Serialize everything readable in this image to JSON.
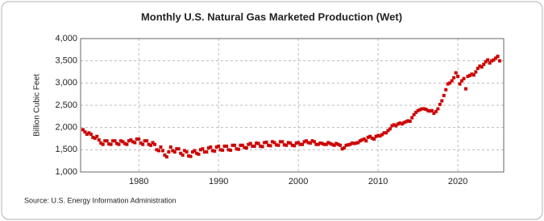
{
  "chart_data": {
    "type": "scatter",
    "title": "Monthly U.S. Natural Gas Marketed Production (Wet)",
    "y_label": "Billion Cubic Feet",
    "source": "Source: U.S. Energy Information Administration",
    "color": "#cc0000",
    "grid": true,
    "xlim": [
      1972.7,
      2025.75
    ],
    "ylim": [
      1000,
      4000
    ],
    "xticks": [
      1980,
      1990,
      2000,
      2010,
      2020
    ],
    "yticks": [
      {
        "value": 1000,
        "label": "1,000"
      },
      {
        "value": 1500,
        "label": "1,500"
      },
      {
        "value": 2000,
        "label": "2,000"
      },
      {
        "value": 2500,
        "label": "2,500"
      },
      {
        "value": 3000,
        "label": "3,000"
      },
      {
        "value": 3500,
        "label": "3,500"
      },
      {
        "value": 4000,
        "label": "4,000"
      }
    ],
    "x": [
      1973,
      1973.25,
      1973.5,
      1973.75,
      1974,
      1974.25,
      1974.5,
      1974.75,
      1975,
      1975.25,
      1975.5,
      1975.75,
      1976,
      1976.25,
      1976.5,
      1976.75,
      1977,
      1977.25,
      1977.5,
      1977.75,
      1978,
      1978.25,
      1978.5,
      1978.75,
      1979,
      1979.25,
      1979.5,
      1979.75,
      1980,
      1980.25,
      1980.5,
      1980.75,
      1981,
      1981.25,
      1981.5,
      1981.75,
      1982,
      1982.25,
      1982.5,
      1982.75,
      1983,
      1983.25,
      1983.5,
      1983.75,
      1984,
      1984.25,
      1984.5,
      1984.75,
      1985,
      1985.25,
      1985.5,
      1985.75,
      1986,
      1986.25,
      1986.5,
      1986.75,
      1987,
      1987.25,
      1987.5,
      1987.75,
      1988,
      1988.25,
      1988.5,
      1988.75,
      1989,
      1989.25,
      1989.5,
      1989.75,
      1990,
      1990.25,
      1990.5,
      1990.75,
      1991,
      1991.25,
      1991.5,
      1991.75,
      1992,
      1992.25,
      1992.5,
      1992.75,
      1993,
      1993.25,
      1993.5,
      1993.75,
      1994,
      1994.25,
      1994.5,
      1994.75,
      1995,
      1995.25,
      1995.5,
      1995.75,
      1996,
      1996.25,
      1996.5,
      1996.75,
      1997,
      1997.25,
      1997.5,
      1997.75,
      1998,
      1998.25,
      1998.5,
      1998.75,
      1999,
      1999.25,
      1999.5,
      1999.75,
      2000,
      2000.25,
      2000.5,
      2000.75,
      2001,
      2001.25,
      2001.5,
      2001.75,
      2002,
      2002.25,
      2002.5,
      2002.75,
      2003,
      2003.25,
      2003.5,
      2003.75,
      2004,
      2004.25,
      2004.5,
      2004.75,
      2005,
      2005.25,
      2005.5,
      2005.75,
      2006,
      2006.25,
      2006.5,
      2006.75,
      2007,
      2007.25,
      2007.5,
      2007.75,
      2008,
      2008.25,
      2008.5,
      2008.75,
      2009,
      2009.25,
      2009.5,
      2009.75,
      2010,
      2010.25,
      2010.5,
      2010.75,
      2011,
      2011.25,
      2011.5,
      2011.75,
      2012,
      2012.25,
      2012.5,
      2012.75,
      2013,
      2013.25,
      2013.5,
      2013.75,
      2014,
      2014.25,
      2014.5,
      2014.75,
      2015,
      2015.25,
      2015.5,
      2015.75,
      2016,
      2016.25,
      2016.5,
      2016.75,
      2017,
      2017.25,
      2017.5,
      2017.75,
      2018,
      2018.25,
      2018.5,
      2018.75,
      2019,
      2019.25,
      2019.5,
      2019.75,
      2020,
      2020.25,
      2020.5,
      2020.75,
      2021,
      2021.25,
      2021.5,
      2021.75,
      2022,
      2022.25,
      2022.5,
      2022.75,
      2023,
      2023.25,
      2023.5,
      2023.75,
      2024,
      2024.25,
      2024.5,
      2024.75,
      2025,
      2025.25
    ],
    "values": [
      1950,
      1900,
      1850,
      1880,
      1850,
      1780,
      1760,
      1800,
      1720,
      1650,
      1620,
      1700,
      1700,
      1630,
      1620,
      1700,
      1700,
      1640,
      1620,
      1700,
      1680,
      1640,
      1620,
      1700,
      1720,
      1680,
      1660,
      1740,
      1740,
      1650,
      1620,
      1700,
      1700,
      1620,
      1600,
      1660,
      1620,
      1500,
      1480,
      1560,
      1480,
      1380,
      1340,
      1450,
      1560,
      1480,
      1450,
      1520,
      1520,
      1420,
      1380,
      1480,
      1450,
      1360,
      1350,
      1450,
      1480,
      1420,
      1400,
      1500,
      1520,
      1450,
      1450,
      1540,
      1560,
      1480,
      1470,
      1560,
      1580,
      1500,
      1490,
      1580,
      1580,
      1500,
      1490,
      1600,
      1600,
      1520,
      1510,
      1600,
      1600,
      1550,
      1540,
      1620,
      1640,
      1580,
      1580,
      1650,
      1640,
      1580,
      1570,
      1660,
      1670,
      1600,
      1590,
      1680,
      1660,
      1610,
      1600,
      1680,
      1680,
      1610,
      1600,
      1660,
      1650,
      1600,
      1590,
      1650,
      1660,
      1620,
      1620,
      1680,
      1700,
      1660,
      1650,
      1700,
      1680,
      1620,
      1620,
      1650,
      1640,
      1620,
      1620,
      1660,
      1640,
      1620,
      1600,
      1640,
      1620,
      1600,
      1520,
      1540,
      1600,
      1610,
      1620,
      1650,
      1640,
      1650,
      1660,
      1700,
      1720,
      1740,
      1700,
      1780,
      1800,
      1760,
      1740,
      1800,
      1820,
      1810,
      1840,
      1880,
      1880,
      1930,
      1970,
      2040,
      2060,
      2040,
      2080,
      2100,
      2080,
      2110,
      2130,
      2150,
      2140,
      2220,
      2290,
      2340,
      2380,
      2400,
      2420,
      2420,
      2410,
      2380,
      2370,
      2380,
      2320,
      2360,
      2420,
      2520,
      2600,
      2720,
      2850,
      2980,
      3000,
      3050,
      3120,
      3230,
      3150,
      2980,
      3050,
      3100,
      2870,
      3150,
      3170,
      3200,
      3180,
      3250,
      3330,
      3380,
      3360,
      3420,
      3480,
      3520,
      3450,
      3500,
      3520,
      3560,
      3600,
      3500
    ]
  }
}
